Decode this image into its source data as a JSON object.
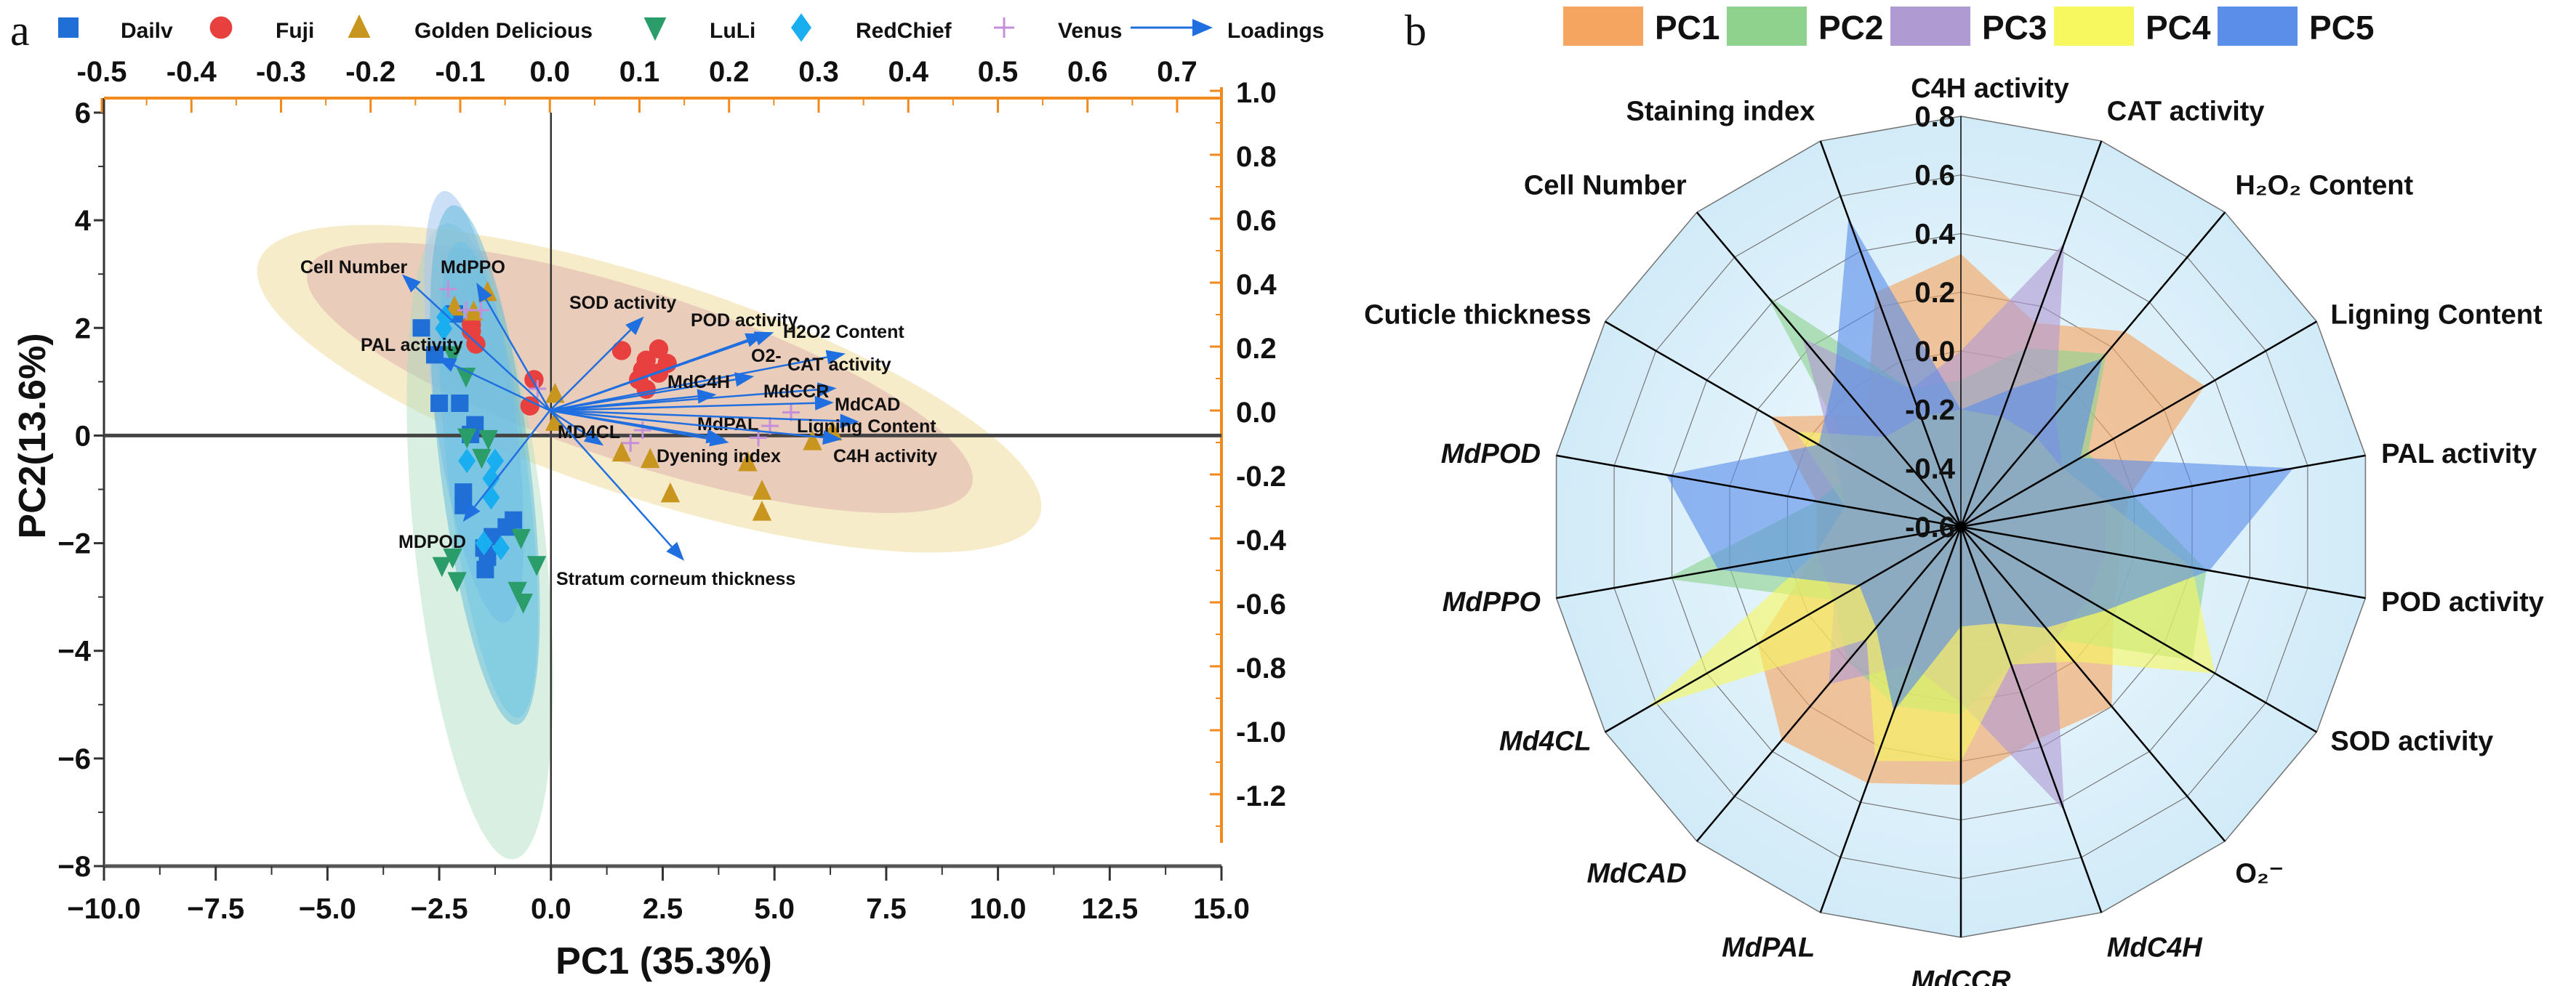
{
  "panel_a_label": "a",
  "panel_b_label": "b",
  "chart_data": [
    {
      "type": "scatter",
      "xlabel": "PC1 (35.3%)",
      "ylabel": "PC2(13.6%)",
      "xlim": [
        -10,
        15
      ],
      "ylim": [
        -8,
        6.27
      ],
      "xticks": [
        "−10.0",
        "−7.5",
        "−5.0",
        "−2.5",
        "0.0",
        "2.5",
        "5.0",
        "7.5",
        "10.0",
        "12.5",
        "15.0"
      ],
      "yticks": [
        "−8",
        "−6",
        "−4",
        "−2",
        "0",
        "2",
        "4",
        "6"
      ],
      "loadings_axis_top": {
        "lim": [
          -0.5,
          0.75
        ],
        "ticks": [
          "-0.5",
          "-0.4",
          "-0.3",
          "-0.2",
          "-0.1",
          "0.0",
          "0.1",
          "0.2",
          "0.3",
          "0.4",
          "0.5",
          "0.6",
          "0.7"
        ],
        "color": "#f08a1c"
      },
      "loadings_axis_right": {
        "lim": [
          -1.35,
          1.0
        ],
        "ticks": [
          "1.0",
          "0.8",
          "0.6",
          "0.4",
          "0.2",
          "0.0",
          "-0.2",
          "-0.4",
          "-0.6",
          "-0.8",
          "-1.0",
          "-1.2"
        ],
        "color": "#f08a1c"
      },
      "legend_placement": "top",
      "series": [
        {
          "name": "Dailv",
          "marker": "square",
          "color": "#1f6fd6",
          "points": [
            [
              -2.04,
              0.6
            ],
            [
              -1.7,
              0.2
            ],
            [
              -1.8,
              0.02
            ],
            [
              -1.96,
              -1.05
            ],
            [
              -1.96,
              -1.3
            ],
            [
              -0.84,
              -1.57
            ],
            [
              -1.0,
              -1.7
            ],
            [
              -1.31,
              -1.88
            ],
            [
              -1.5,
              -2.09
            ],
            [
              -1.42,
              -2.26
            ],
            [
              -1.47,
              -2.49
            ],
            [
              -2.6,
              1.5
            ],
            [
              -2.9,
              2.0
            ],
            [
              -2.5,
              0.6
            ],
            [
              -2.16,
              2.26
            ]
          ]
        },
        {
          "name": "Fuji",
          "marker": "circle",
          "color": "#e8403f",
          "points": [
            [
              1.58,
              1.58
            ],
            [
              2.41,
              1.61
            ],
            [
              2.13,
              1.4
            ],
            [
              2.6,
              1.34
            ],
            [
              2.05,
              1.22
            ],
            [
              2.41,
              1.16
            ],
            [
              1.96,
              1.04
            ],
            [
              2.13,
              0.86
            ],
            [
              -0.38,
              1.04
            ],
            [
              -0.47,
              0.55
            ],
            [
              -1.78,
              2.06
            ],
            [
              -1.68,
              1.7
            ],
            [
              -1.78,
              1.94
            ]
          ]
        },
        {
          "name": "Golden Delicious",
          "marker": "triangle-up",
          "color": "#c8961e",
          "points": [
            [
              -1.42,
              2.66
            ],
            [
              -2.16,
              2.39
            ],
            [
              -1.73,
              2.3
            ],
            [
              0.09,
              0.77
            ],
            [
              0.09,
              0.25
            ],
            [
              1.58,
              -0.32
            ],
            [
              2.22,
              -0.44
            ],
            [
              4.4,
              -0.5
            ],
            [
              5.85,
              -0.11
            ],
            [
              6.3,
              0.07
            ],
            [
              2.67,
              -1.08
            ],
            [
              4.72,
              -1.03
            ],
            [
              4.72,
              -1.42
            ]
          ]
        },
        {
          "name": "LuLi",
          "marker": "triangle-down",
          "color": "#2a9d6a",
          "points": [
            [
              -1.88,
              -0.03
            ],
            [
              -1.4,
              -0.06
            ],
            [
              -1.55,
              -0.41
            ],
            [
              -2.2,
              1.5
            ],
            [
              -1.9,
              1.1
            ],
            [
              -2.44,
              -2.42
            ],
            [
              -2.2,
              -2.26
            ],
            [
              -2.1,
              -2.7
            ],
            [
              -0.67,
              -1.9
            ],
            [
              -0.32,
              -2.4
            ],
            [
              -0.75,
              -2.88
            ],
            [
              -0.62,
              -3.1
            ]
          ]
        },
        {
          "name": "RedChief",
          "marker": "diamond",
          "color": "#19aef0",
          "points": [
            [
              -2.37,
              2.2
            ],
            [
              -2.4,
              1.99
            ],
            [
              -1.88,
              -0.47
            ],
            [
              -1.25,
              -0.47
            ],
            [
              -1.34,
              -0.8
            ],
            [
              -1.34,
              -1.15
            ],
            [
              -1.5,
              -2.0
            ],
            [
              -1.12,
              -2.09
            ]
          ]
        },
        {
          "name": "Venus",
          "marker": "plus",
          "color": "#c48fd8",
          "points": [
            [
              -2.3,
              2.72
            ],
            [
              -1.9,
              2.33
            ],
            [
              -1.57,
              2.33
            ],
            [
              -0.3,
              0.87
            ],
            [
              5.37,
              0.43
            ],
            [
              2.05,
              0.1
            ],
            [
              1.78,
              -0.14
            ],
            [
              4.64,
              -0.04
            ],
            [
              4.9,
              0.18
            ]
          ]
        }
      ],
      "loadings": {
        "name": "Loadings",
        "color": "#1f6fe0",
        "vectors": [
          {
            "label": "Cell Number",
            "x": -0.165,
            "y": 0.426
          },
          {
            "label": "MdPPO",
            "x": -0.082,
            "y": 0.4
          },
          {
            "label": "SOD activity",
            "x": 0.105,
            "y": 0.294
          },
          {
            "label": "POD activity",
            "x": 0.24,
            "y": 0.24
          },
          {
            "label": "H2O2 Content",
            "x": 0.25,
            "y": 0.245
          },
          {
            "label": "O2-",
            "x": 0.228,
            "y": 0.107
          },
          {
            "label": "CAT activity",
            "x": 0.33,
            "y": 0.178
          },
          {
            "label": "MdC4H",
            "x": 0.186,
            "y": 0.05
          },
          {
            "label": "MdCCR",
            "x": 0.32,
            "y": 0.07
          },
          {
            "label": "MdCAD",
            "x": 0.317,
            "y": 0.025
          },
          {
            "label": "MdPAL",
            "x": 0.196,
            "y": -0.09
          },
          {
            "label": "Ligning Content",
            "x": 0.345,
            "y": -0.035
          },
          {
            "label": "MD4CL",
            "x": 0.06,
            "y": -0.11
          },
          {
            "label": "Dyening index",
            "x": 0.2,
            "y": -0.1
          },
          {
            "label": "C4H activity",
            "x": 0.326,
            "y": -0.09
          },
          {
            "label": "PAL activity",
            "x": -0.126,
            "y": 0.167
          },
          {
            "label": "MDPOD",
            "x": -0.097,
            "y": -0.348
          },
          {
            "label": "Stratum corneum thickness",
            "x": 0.15,
            "y": -0.47
          }
        ]
      }
    },
    {
      "type": "radar",
      "rlim": [
        -0.6,
        0.8
      ],
      "rticks": [
        "-0.6",
        "-0.4",
        "-0.2",
        "0.0",
        "0.2",
        "0.4",
        "0.6",
        "0.8"
      ],
      "legend_placement": "top",
      "axes": [
        {
          "label": "C4H activity",
          "italic": false
        },
        {
          "label": "CAT activity",
          "italic": false
        },
        {
          "label": "H₂O₂ Content",
          "italic": false
        },
        {
          "label": "Ligning Content",
          "italic": false
        },
        {
          "label": "PAL activity",
          "italic": false
        },
        {
          "label": "POD activity",
          "italic": false
        },
        {
          "label": "SOD activity",
          "italic": false
        },
        {
          "label": "O₂⁻",
          "italic": false
        },
        {
          "label": "MdC4H",
          "italic": true
        },
        {
          "label": "MdCCR",
          "italic": true
        },
        {
          "label": "MdPAL",
          "italic": true
        },
        {
          "label": "MdCAD",
          "italic": true
        },
        {
          "label": "Md4CL",
          "italic": true
        },
        {
          "label": "MdPPO",
          "italic": true
        },
        {
          "label": "MdPOD",
          "italic": true
        },
        {
          "label": "Cuticle thickness",
          "italic": false
        },
        {
          "label": "Cell Number",
          "italic": false
        },
        {
          "label": "Staining index",
          "italic": false
        }
      ],
      "series": [
        {
          "name": "PC1",
          "color": "#f5a560",
          "values": [
            0.33,
            0.14,
            0.27,
            0.36,
            -0.02,
            -0.05,
            0.0,
            0.2,
            0.17,
            0.28,
            0.33,
            0.35,
            0.2,
            -0.1,
            -0.1,
            0.15,
            -0.1,
            0.25
          ]
        },
        {
          "name": "PC2",
          "color": "#8ed28e",
          "values": [
            -0.1,
            0.05,
            0.17,
            -0.1,
            0.0,
            0.25,
            0.31,
            -0.1,
            -0.1,
            0.04,
            0.05,
            0.0,
            -0.1,
            0.42,
            -0.1,
            -0.2,
            0.43,
            -0.1
          ]
        },
        {
          "name": "PC3",
          "color": "#b09ad2",
          "values": [
            0.0,
            0.43,
            -0.1,
            -0.2,
            -0.1,
            -0.1,
            -0.1,
            -0.1,
            0.43,
            0.0,
            -0.1,
            0.1,
            -0.1,
            -0.1,
            -0.2,
            -0.1,
            0.24,
            -0.1
          ]
        },
        {
          "name": "PC4",
          "color": "#f7f760",
          "values": [
            -0.2,
            -0.2,
            -0.2,
            -0.2,
            -0.1,
            0.2,
            0.4,
            0.0,
            -0.1,
            0.2,
            0.25,
            -0.1,
            0.64,
            -0.1,
            -0.2,
            0.05,
            -0.2,
            -0.2
          ]
        },
        {
          "name": "PC5",
          "color": "#5a8ee8",
          "values": [
            -0.2,
            -0.1,
            0.15,
            -0.13,
            0.55,
            0.26,
            -0.03,
            -0.15,
            -0.25,
            -0.26,
            0.07,
            -0.15,
            -0.2,
            0.24,
            0.42,
            -0.04,
            0.07,
            0.52
          ]
        }
      ]
    }
  ]
}
